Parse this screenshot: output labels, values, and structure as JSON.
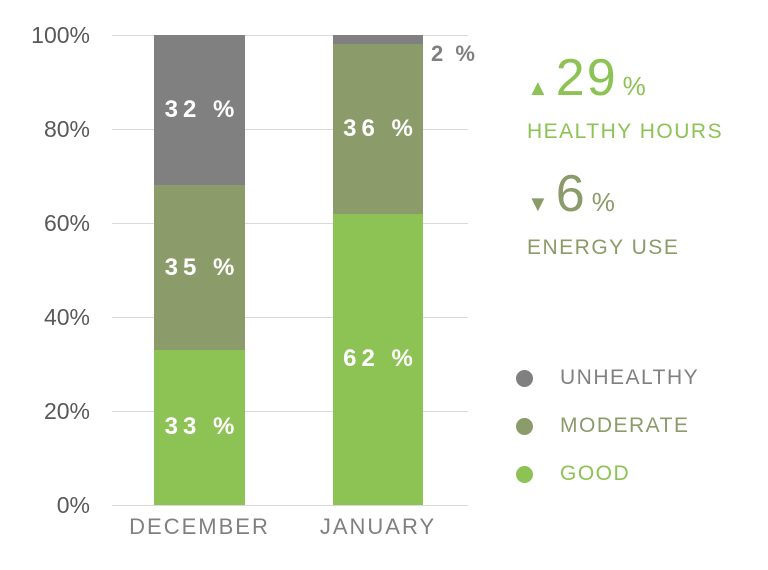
{
  "chart_data": {
    "type": "bar",
    "stacked": true,
    "categories": [
      "DECEMBER",
      "JANUARY"
    ],
    "series": [
      {
        "name": "GOOD",
        "color": "#8dc254",
        "values": [
          33,
          62
        ]
      },
      {
        "name": "MODERATE",
        "color": "#8b9b69",
        "values": [
          35,
          36
        ]
      },
      {
        "name": "UNHEALTHY",
        "color": "#808080",
        "values": [
          32,
          2
        ]
      }
    ],
    "ylim": [
      0,
      100
    ],
    "yticks": [
      "0%",
      "20%",
      "40%",
      "60%",
      "80%",
      "100%"
    ],
    "grid": true,
    "legend_position": "right",
    "value_label_suffix": " %"
  },
  "stats": [
    {
      "icon": "▲",
      "value": "29",
      "unit": "%",
      "label": "HEALTHY HOURS",
      "color": "#8dc254"
    },
    {
      "icon": "▼",
      "value": "6",
      "unit": "%",
      "label": "ENERGY USE",
      "color": "#8b9b69"
    }
  ],
  "legend": [
    {
      "label": "UNHEALTHY",
      "color": "#808080"
    },
    {
      "label": "MODERATE",
      "color": "#8b9b69"
    },
    {
      "label": "GOOD",
      "color": "#8dc254"
    }
  ],
  "colors": {
    "grid": "#d9d9d9",
    "axis_text": "#595959",
    "category_text": "#808080",
    "bar_value_text": "#ffffff",
    "external_value_text": "#808080",
    "background": "#ffffff"
  }
}
